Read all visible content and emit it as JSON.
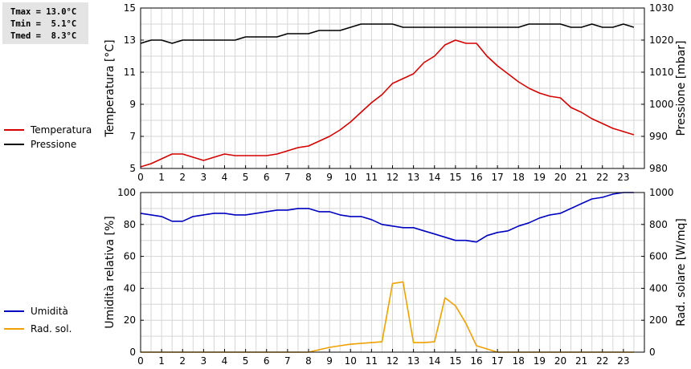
{
  "stats": {
    "tmax": "Tmax = 13.0°C",
    "tmin": "Tmin =  5.1°C",
    "tmed": "Tmed =  8.3°C"
  },
  "chart_data": [
    {
      "type": "line",
      "xlabel": "",
      "xlim": [
        0,
        24
      ],
      "x_ticks": [
        "0",
        "1",
        "2",
        "3",
        "4",
        "5",
        "6",
        "7",
        "8",
        "9",
        "10",
        "11",
        "12",
        "13",
        "14",
        "15",
        "16",
        "17",
        "18",
        "19",
        "20",
        "21",
        "22",
        "23"
      ],
      "ylabel": "Temperatura [°C]",
      "ylim": [
        5,
        15
      ],
      "y_ticks": [
        "5",
        "7",
        "9",
        "11",
        "13",
        "15"
      ],
      "y2label": "Pressione [mbar]",
      "y2lim": [
        980,
        1030
      ],
      "y2_ticks": [
        "980",
        "990",
        "1000",
        "1010",
        "1020",
        "1030"
      ],
      "grid": true,
      "legend": "left",
      "series": [
        {
          "name": "Temperatura",
          "color": "#d40000",
          "axis": "left",
          "x": [
            0,
            0.5,
            1,
            1.5,
            2,
            2.5,
            3,
            3.5,
            4,
            4.5,
            5,
            5.5,
            6,
            6.5,
            7,
            7.5,
            8,
            8.5,
            9,
            9.5,
            10,
            10.5,
            11,
            11.5,
            12,
            12.5,
            13,
            13.5,
            14,
            14.5,
            15,
            15.5,
            16,
            16.5,
            17,
            17.5,
            18,
            18.5,
            19,
            19.5,
            20,
            20.5,
            21,
            21.5,
            22,
            22.5,
            23,
            23.5
          ],
          "values": [
            5.1,
            5.3,
            5.6,
            5.9,
            5.9,
            5.7,
            5.5,
            5.7,
            5.9,
            5.8,
            5.8,
            5.8,
            5.8,
            5.9,
            6.1,
            6.3,
            6.4,
            6.7,
            7.0,
            7.4,
            7.9,
            8.5,
            9.1,
            9.6,
            10.3,
            10.6,
            10.9,
            11.6,
            12.0,
            12.7,
            13.0,
            12.8,
            12.8,
            12.0,
            11.4,
            10.9,
            10.4,
            10.0,
            9.7,
            9.5,
            9.4,
            8.8,
            8.5,
            8.1,
            7.8,
            7.5,
            7.3,
            7.1
          ]
        },
        {
          "name": "Pressione",
          "color": "#000000",
          "axis": "right",
          "x": [
            0,
            0.5,
            1,
            1.5,
            2,
            2.5,
            3,
            3.5,
            4,
            4.5,
            5,
            5.5,
            6,
            6.5,
            7,
            7.5,
            8,
            8.5,
            9,
            9.5,
            10,
            10.5,
            11,
            11.5,
            12,
            12.5,
            13,
            13.5,
            14,
            14.5,
            15,
            15.5,
            16,
            16.5,
            17,
            17.5,
            18,
            18.5,
            19,
            19.5,
            20,
            20.5,
            21,
            21.5,
            22,
            22.5,
            23,
            23.5
          ],
          "values": [
            1019,
            1020,
            1020,
            1019,
            1020,
            1020,
            1020,
            1020,
            1020,
            1020,
            1021,
            1021,
            1021,
            1021,
            1022,
            1022,
            1022,
            1023,
            1023,
            1023,
            1024,
            1025,
            1025,
            1025,
            1025,
            1024,
            1024,
            1024,
            1024,
            1024,
            1024,
            1024,
            1024,
            1024,
            1024,
            1024,
            1024,
            1025,
            1025,
            1025,
            1025,
            1024,
            1024,
            1025,
            1024,
            1024,
            1025,
            1024
          ]
        }
      ]
    },
    {
      "type": "line",
      "xlabel": "",
      "xlim": [
        0,
        24
      ],
      "x_ticks": [
        "0",
        "1",
        "2",
        "3",
        "4",
        "5",
        "6",
        "7",
        "8",
        "9",
        "10",
        "11",
        "12",
        "13",
        "14",
        "15",
        "16",
        "17",
        "18",
        "19",
        "20",
        "21",
        "22",
        "23"
      ],
      "ylabel": "Umidità relativa [%]",
      "ylim": [
        0,
        100
      ],
      "y_ticks": [
        "0",
        "20",
        "40",
        "60",
        "80",
        "100"
      ],
      "y2label": "Rad. solare [W/mq]",
      "y2lim": [
        0,
        1000
      ],
      "y2_ticks": [
        "0",
        "200",
        "400",
        "600",
        "800",
        "1000"
      ],
      "grid": true,
      "legend": "left",
      "series": [
        {
          "name": "Umidità",
          "color": "#0000c0",
          "axis": "left",
          "x": [
            0,
            0.5,
            1,
            1.5,
            2,
            2.5,
            3,
            3.5,
            4,
            4.5,
            5,
            5.5,
            6,
            6.5,
            7,
            7.5,
            8,
            8.5,
            9,
            9.5,
            10,
            10.5,
            11,
            11.5,
            12,
            12.5,
            13,
            13.5,
            14,
            14.5,
            15,
            15.5,
            16,
            16.5,
            17,
            17.5,
            18,
            18.5,
            19,
            19.5,
            20,
            20.5,
            21,
            21.5,
            22,
            22.5,
            23,
            23.5
          ],
          "values": [
            87,
            86,
            85,
            82,
            82,
            85,
            86,
            87,
            87,
            86,
            86,
            87,
            88,
            89,
            89,
            90,
            90,
            88,
            88,
            86,
            85,
            85,
            83,
            80,
            79,
            78,
            78,
            76,
            74,
            72,
            70,
            70,
            69,
            73,
            75,
            76,
            79,
            81,
            84,
            86,
            87,
            90,
            93,
            96,
            97,
            99,
            100,
            100
          ]
        },
        {
          "name": "Rad. sol.",
          "color": "#f0a000",
          "axis": "right",
          "x": [
            0,
            1,
            2,
            3,
            4,
            5,
            6,
            7,
            8,
            8.5,
            9,
            9.5,
            10,
            10.5,
            11,
            11.5,
            12,
            12.5,
            13,
            13.5,
            14,
            14.5,
            15,
            15.5,
            16,
            16.5,
            17,
            18,
            19,
            20,
            21,
            22,
            23,
            23.5
          ],
          "values": [
            0,
            0,
            0,
            0,
            0,
            0,
            0,
            0,
            0,
            15,
            30,
            40,
            50,
            55,
            60,
            65,
            430,
            440,
            60,
            60,
            65,
            340,
            290,
            180,
            40,
            20,
            0,
            0,
            0,
            0,
            0,
            0,
            0,
            0
          ]
        }
      ]
    }
  ]
}
